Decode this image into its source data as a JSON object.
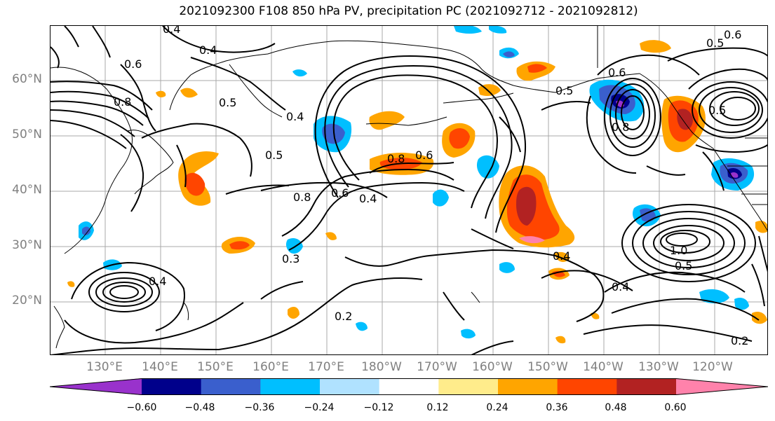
{
  "title": "2021092300 F108 850 hPa PV, precipitation PC (2021092712 - 2021092812)",
  "lat_labels": [
    "60°N",
    "50°N",
    "40°N",
    "30°N",
    "20°N"
  ],
  "lon_labels": [
    "130°E",
    "140°E",
    "150°E",
    "160°E",
    "170°E",
    "180°W",
    "170°W",
    "160°W",
    "150°W",
    "140°W",
    "130°W",
    "120°W"
  ],
  "colorbar": {
    "ticks": [
      "−0.60",
      "−0.48",
      "−0.36",
      "−0.24",
      "−0.12",
      "0.12",
      "0.24",
      "0.36",
      "0.48",
      "0.60"
    ],
    "colors": [
      "#9932CC",
      "#00008B",
      "#3A5FCD",
      "#00BFFF",
      "#B0E2FF",
      "#FFFFFF",
      "#FFEC8B",
      "#FFA500",
      "#FF4500",
      "#B22222",
      "#FF82AB"
    ]
  },
  "contour_labels": [
    "0.4",
    "0.4",
    "0.6",
    "0.8",
    "0.5",
    "0.4",
    "0.5",
    "0.8",
    "0.6",
    "0.4",
    "0.8",
    "0.6",
    "0.5",
    "0.8",
    "0.6",
    "0.4",
    "0.5",
    "1.0",
    "0.5",
    "0.4",
    "0.4",
    "0.2",
    "0.3",
    "0.2",
    "0.5",
    "0.6"
  ]
}
